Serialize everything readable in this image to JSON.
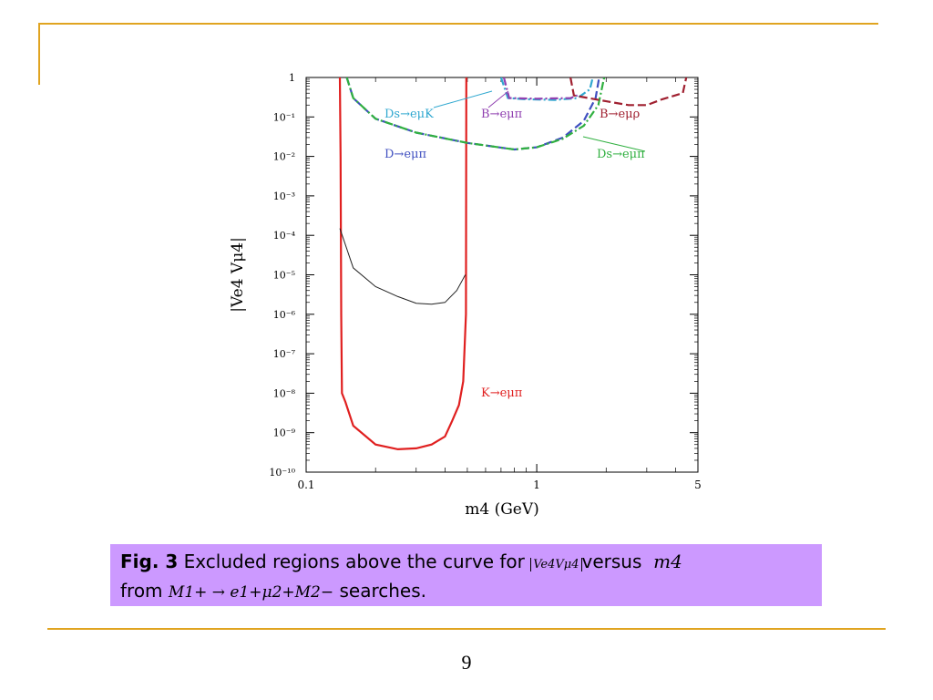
{
  "page_number": "9",
  "caption": {
    "fig_label": "Fig. 3",
    "text_part1": " Excluded regions above the curve for ",
    "math_abs": "Ve4Vμ4",
    "text_part2": "versus ",
    "math_mass": "m4",
    "text_part3": "from ",
    "math_process": "M1+ → e1+μ2+M2−",
    "text_part4": " searches."
  },
  "chart_data": {
    "type": "line",
    "xlabel": "m4 (GeV)",
    "ylabel": "|Ve4 Vμ4|",
    "x_scale": "log",
    "y_scale": "log",
    "xlim": [
      0.1,
      5
    ],
    "ylim": [
      1e-10,
      1
    ],
    "x_ticks": [
      {
        "value": 0.1,
        "label": "0.1"
      },
      {
        "value": 1,
        "label": "1"
      },
      {
        "value": 5,
        "label": "5"
      }
    ],
    "y_ticks": [
      {
        "value": 1,
        "label": "1"
      },
      {
        "value": 0.1,
        "label": "10⁻¹"
      },
      {
        "value": 0.01,
        "label": "10⁻²"
      },
      {
        "value": 0.001,
        "label": "10⁻³"
      },
      {
        "value": 0.0001,
        "label": "10⁻⁴"
      },
      {
        "value": 1e-05,
        "label": "10⁻⁵"
      },
      {
        "value": 1e-06,
        "label": "10⁻⁶"
      },
      {
        "value": 1e-07,
        "label": "10⁻⁷"
      },
      {
        "value": 1e-08,
        "label": "10⁻⁸"
      },
      {
        "value": 1e-09,
        "label": "10⁻⁹"
      },
      {
        "value": 1e-10,
        "label": "10⁻¹⁰"
      }
    ],
    "series": [
      {
        "name": "K→eμπ",
        "color": "#e02020",
        "style": "solid",
        "points": [
          [
            0.14,
            1
          ],
          [
            0.141,
            0.01
          ],
          [
            0.142,
            1e-06
          ],
          [
            0.143,
            1e-08
          ],
          [
            0.148,
            6e-09
          ],
          [
            0.16,
            1.5e-09
          ],
          [
            0.2,
            5e-10
          ],
          [
            0.25,
            3.8e-10
          ],
          [
            0.3,
            4e-10
          ],
          [
            0.35,
            5e-10
          ],
          [
            0.4,
            8e-10
          ],
          [
            0.43,
            2e-09
          ],
          [
            0.46,
            5e-09
          ],
          [
            0.48,
            2e-08
          ],
          [
            0.493,
            1e-06
          ],
          [
            0.495,
            1
          ]
        ]
      },
      {
        "name": "",
        "color": "#222222",
        "style": "thin",
        "points": [
          [
            0.14,
            0.00015
          ],
          [
            0.16,
            1.5e-05
          ],
          [
            0.2,
            5e-06
          ],
          [
            0.25,
            2.8e-06
          ],
          [
            0.3,
            1.9e-06
          ],
          [
            0.35,
            1.8e-06
          ],
          [
            0.4,
            2e-06
          ],
          [
            0.45,
            4e-06
          ],
          [
            0.49,
            1e-05
          ]
        ]
      },
      {
        "name": "D→eμπ",
        "color": "#4050c0",
        "style": "dash",
        "points": [
          [
            0.15,
            1
          ],
          [
            0.16,
            0.3
          ],
          [
            0.2,
            0.09
          ],
          [
            0.3,
            0.04
          ],
          [
            0.5,
            0.022
          ],
          [
            0.8,
            0.015
          ],
          [
            1.0,
            0.017
          ],
          [
            1.3,
            0.03
          ],
          [
            1.6,
            0.08
          ],
          [
            1.8,
            0.3
          ],
          [
            1.865,
            1
          ]
        ]
      },
      {
        "name": "Ds→eμπ",
        "color": "#30b040",
        "style": "dashdot",
        "points": [
          [
            0.15,
            1
          ],
          [
            0.16,
            0.3
          ],
          [
            0.2,
            0.09
          ],
          [
            0.3,
            0.04
          ],
          [
            0.5,
            0.022
          ],
          [
            0.8,
            0.015
          ],
          [
            1.0,
            0.017
          ],
          [
            1.3,
            0.028
          ],
          [
            1.6,
            0.06
          ],
          [
            1.85,
            0.2
          ],
          [
            1.96,
            1
          ]
        ]
      },
      {
        "name": "Ds→eμK",
        "color": "#30a8d0",
        "style": "dashdot",
        "points": [
          [
            0.7,
            1
          ],
          [
            0.75,
            0.3
          ],
          [
            0.9,
            0.28
          ],
          [
            1.2,
            0.27
          ],
          [
            1.5,
            0.3
          ],
          [
            1.7,
            0.5
          ],
          [
            1.75,
            1
          ]
        ]
      },
      {
        "name": "B→eμπ",
        "color": "#9040b0",
        "style": "dashdot",
        "points": [
          [
            0.72,
            1
          ],
          [
            0.76,
            0.3
          ],
          [
            1.0,
            0.29
          ],
          [
            1.4,
            0.3
          ],
          [
            1.5,
            0.35
          ]
        ]
      },
      {
        "name": "B→eμρ",
        "color": "#a02030",
        "style": "dash",
        "points": [
          [
            1.4,
            1
          ],
          [
            1.45,
            0.35
          ],
          [
            2.0,
            0.25
          ],
          [
            2.5,
            0.2
          ],
          [
            3.0,
            0.2
          ],
          [
            3.5,
            0.28
          ],
          [
            4.3,
            0.4
          ],
          [
            4.45,
            1
          ]
        ]
      }
    ],
    "annotations": [
      {
        "text": "Ds→eμK",
        "color": "#30a8d0"
      },
      {
        "text": "B→eμπ",
        "color": "#9040b0"
      },
      {
        "text": "B→eμρ",
        "color": "#a02030"
      },
      {
        "text": "D→eμπ",
        "color": "#4050c0"
      },
      {
        "text": "Ds→eμπ",
        "color": "#30b040"
      },
      {
        "text": "K→eμπ",
        "color": "#e02020"
      }
    ]
  }
}
